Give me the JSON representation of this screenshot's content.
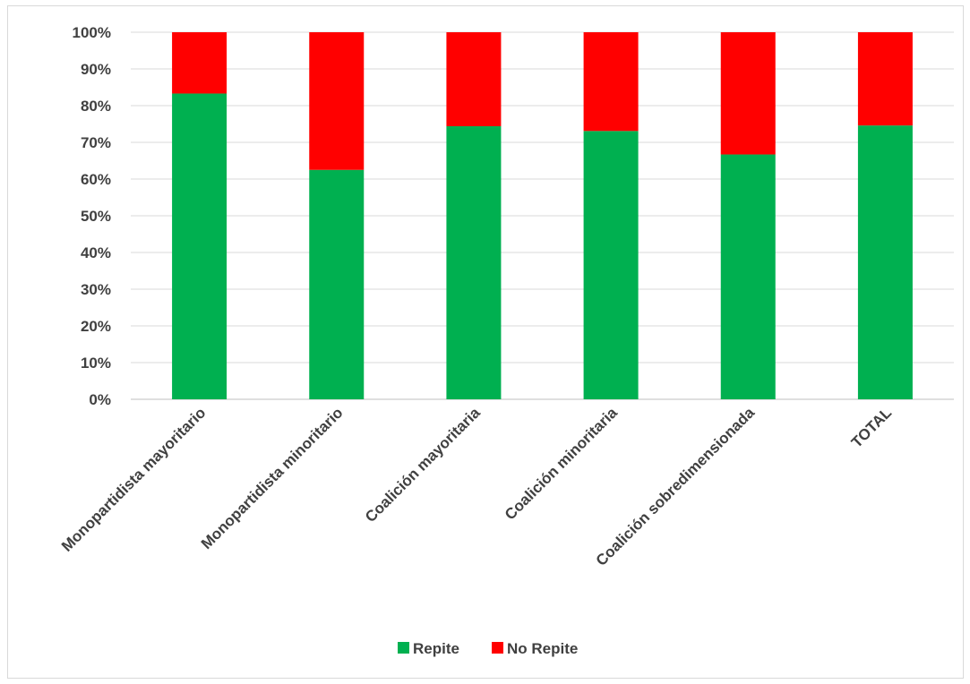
{
  "chart_data": {
    "type": "bar",
    "stacked": true,
    "percent_stacked": true,
    "categories": [
      "Monopartidista mayoritario",
      "Monopartidista minoritario",
      "Coalición mayoritaria",
      "Coalición minoritaria",
      "Coalición sobredimensionada",
      "TOTAL"
    ],
    "series": [
      {
        "name": "Repite",
        "color": "#00b050",
        "values": [
          83.3,
          62.5,
          74.4,
          73.1,
          66.7,
          74.6
        ]
      },
      {
        "name": "No Repite",
        "color": "#ff0000",
        "values": [
          16.7,
          37.5,
          25.6,
          26.9,
          33.3,
          25.4
        ]
      }
    ],
    "y_ticks": [
      "0%",
      "10%",
      "20%",
      "30%",
      "40%",
      "50%",
      "60%",
      "70%",
      "80%",
      "90%",
      "100%"
    ],
    "ylim": [
      0,
      100
    ],
    "grid": true,
    "legend_position": "bottom",
    "title": "",
    "xlabel": "",
    "ylabel": ""
  }
}
